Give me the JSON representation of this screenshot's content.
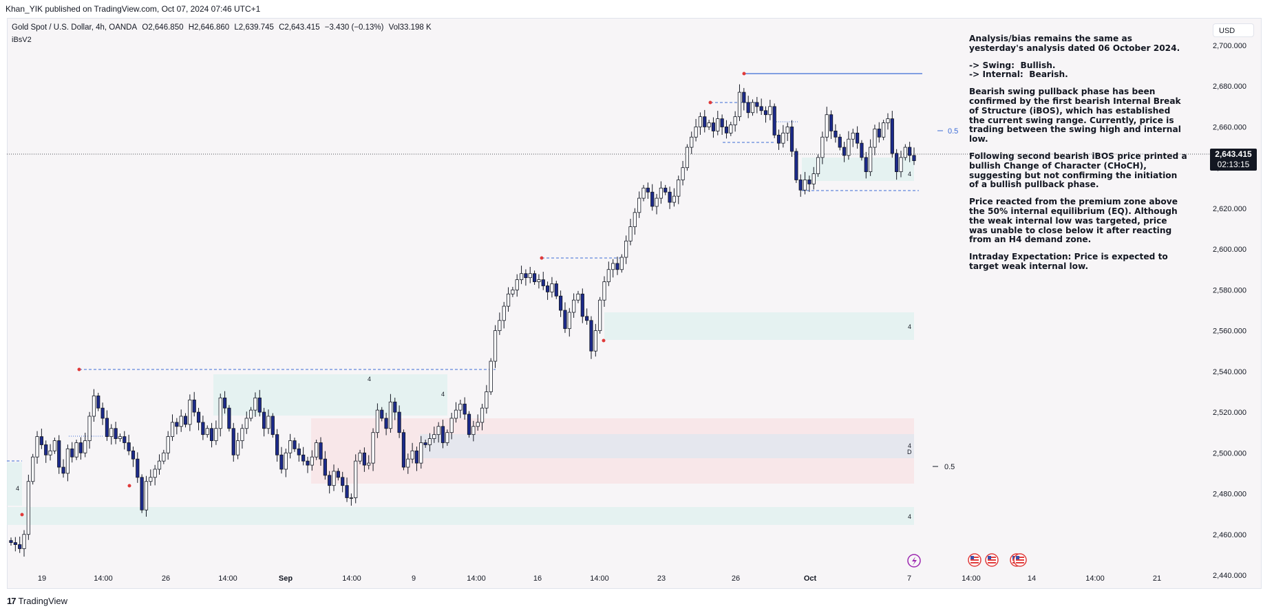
{
  "header": {
    "published_line": "Khan_YIK published on TradingView.com, Oct 07, 2024 07:46 UTC+1"
  },
  "legend": {
    "symbol": "Gold Spot / U.S. Dollar, 4h, OANDA",
    "open": "O2,646.850",
    "high": "H2,646.860",
    "low": "L2,639.745",
    "close": "C2,643.415",
    "change": "−3.430 (−0.13%)",
    "volume": "Vol33.198 K",
    "indicator": "iBsV2"
  },
  "currency": "USD",
  "last_price": {
    "value": "2,643.415",
    "countdown": "02:13:15"
  },
  "analysis": {
    "p1": "Analysis/bias remains the same as yesterday's analysis dated 06 October 2024.",
    "p2a": "-> Swing:  Bullish.",
    "p2b": "-> Internal:  Bearish.",
    "p3": "Bearish swing pullback phase has been confirmed by the first bearish Internal Break of Structure (iBOS), which has established the current swing range. Currently, price is trading between the swing high and internal low.",
    "p4": "Following second bearish iBOS price printed a bullish Change of Character (CHoCH), suggesting but not confirming the initiation of a bullish pullback phase.",
    "p5": "Price reacted from the premium zone above the 50% internal equilibrium (EQ). Although the weak internal low was targeted, price was unable to close below it after reacting from an H4 demand zone.",
    "p6": "Intraday Expectation: Price is expected to target weak internal low."
  },
  "footer": {
    "logo_mark": "17",
    "logo_text": "TradingView"
  },
  "chart_data": {
    "type": "candlestick",
    "timeframe": "4h",
    "y_axis": {
      "range": [
        2430,
        2710
      ],
      "ticks": [
        2440,
        2460,
        2480,
        2500,
        2520,
        2540,
        2560,
        2580,
        2600,
        2620,
        2640,
        2660,
        2680,
        2700
      ],
      "tick_labels": [
        "2,440.000",
        "2,460.000",
        "2,480.000",
        "2,500.000",
        "2,520.000",
        "2,540.000",
        "2,560.000",
        "2,580.000",
        "2,600.000",
        "2,620.000",
        "2,640.000",
        "2,660.000",
        "2,680.000",
        "2,700.000"
      ]
    },
    "x_axis": {
      "tick_labels": [
        "19",
        "14:00",
        "26",
        "14:00",
        "Sep",
        "14:00",
        "9",
        "14:00",
        "16",
        "14:00",
        "23",
        "26",
        "Oct",
        "7",
        "14:00",
        "14",
        "14:00",
        "21"
      ]
    },
    "last_price": 2643.415,
    "candles_close": [
      2456,
      2455,
      2453,
      2460,
      2486,
      2498,
      2508,
      2504,
      2499,
      2501,
      2506,
      2493,
      2490,
      2502,
      2498,
      2505,
      2500,
      2506,
      2518,
      2528,
      2522,
      2517,
      2508,
      2512,
      2507,
      2508,
      2505,
      2501,
      2497,
      2488,
      2472,
      2486,
      2488,
      2492,
      2496,
      2500,
      2508,
      2515,
      2513,
      2518,
      2514,
      2526,
      2520,
      2515,
      2509,
      2512,
      2506,
      2512,
      2527,
      2522,
      2512,
      2499,
      2506,
      2512,
      2517,
      2521,
      2527,
      2520,
      2512,
      2518,
      2509,
      2499,
      2492,
      2500,
      2506,
      2502,
      2499,
      2496,
      2494,
      2498,
      2505,
      2497,
      2489,
      2484,
      2491,
      2488,
      2484,
      2478,
      2478,
      2496,
      2500,
      2494,
      2495,
      2510,
      2521,
      2517,
      2512,
      2525,
      2520,
      2510,
      2493,
      2497,
      2501,
      2495,
      2505,
      2504,
      2507,
      2509,
      2513,
      2505,
      2510,
      2517,
      2521,
      2524,
      2519,
      2509,
      2513,
      2515,
      2522,
      2530,
      2545,
      2560,
      2565,
      2572,
      2578,
      2580,
      2585,
      2588,
      2586,
      2588,
      2584,
      2585,
      2582,
      2579,
      2583,
      2577,
      2570,
      2561,
      2569,
      2575,
      2578,
      2567,
      2565,
      2550,
      2560,
      2575,
      2584,
      2590,
      2593,
      2590,
      2596,
      2604,
      2611,
      2618,
      2625,
      2630,
      2628,
      2621,
      2625,
      2630,
      2628,
      2623,
      2626,
      2634,
      2640,
      2650,
      2655,
      2660,
      2665,
      2660,
      2662,
      2658,
      2664,
      2660,
      2657,
      2661,
      2665,
      2677,
      2672,
      2667,
      2672,
      2670,
      2668,
      2666,
      2670,
      2656,
      2652,
      2657,
      2660,
      2648,
      2634,
      2629,
      2634,
      2632,
      2637,
      2645,
      2655,
      2666,
      2658,
      2655,
      2650,
      2646,
      2654,
      2657,
      2652,
      2645,
      2638,
      2650,
      2659,
      2655,
      2662,
      2664,
      2647,
      2638,
      2645,
      2650,
      2646,
      2643.415
    ]
  }
}
